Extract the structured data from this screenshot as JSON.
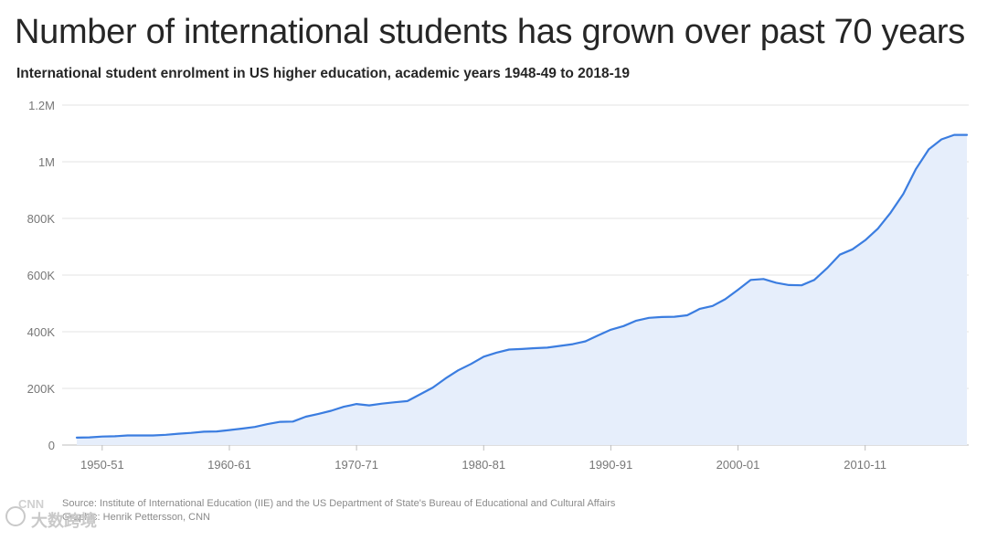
{
  "title": "Number of international students has grown over past 70 years",
  "subtitle": "International student enrolment in US higher education, academic years 1948-49 to 2018-19",
  "source": "Source: Institute of International Education (IIE) and the US Department of State's Bureau of Educational and Cultural Affairs",
  "graphic_credit": "Graphic: Henrik Pettersson, CNN",
  "watermark": {
    "cnn": "CNN",
    "text": "大数跨境"
  },
  "colors": {
    "line": "#3b7de0",
    "area": "#e6eefb",
    "grid": "#e3e3e3",
    "axis_text": "#777777"
  },
  "chart_data": {
    "type": "area",
    "title": "Number of international students has grown over past 70 years",
    "subtitle": "International student enrolment in US higher education, academic years 1948-49 to 2018-19",
    "xlabel": "",
    "ylabel": "",
    "ylim": [
      0,
      1200000
    ],
    "xlim": [
      1948,
      2018
    ],
    "grid": true,
    "yticks": [
      {
        "value": 0,
        "label": "0"
      },
      {
        "value": 200000,
        "label": "200K"
      },
      {
        "value": 400000,
        "label": "400K"
      },
      {
        "value": 600000,
        "label": "600K"
      },
      {
        "value": 800000,
        "label": "800K"
      },
      {
        "value": 1000000,
        "label": "1M"
      },
      {
        "value": 1200000,
        "label": "1.2M"
      }
    ],
    "xticks": [
      {
        "value": 1950,
        "label": "1950-51"
      },
      {
        "value": 1960,
        "label": "1960-61"
      },
      {
        "value": 1970,
        "label": "1970-71"
      },
      {
        "value": 1980,
        "label": "1980-81"
      },
      {
        "value": 1990,
        "label": "1990-91"
      },
      {
        "value": 2000,
        "label": "2000-01"
      },
      {
        "value": 2010,
        "label": "2010-11"
      }
    ],
    "series": [
      {
        "x": [
          1948,
          1949,
          1950,
          1951,
          1952,
          1953,
          1954,
          1955,
          1956,
          1957,
          1958,
          1959,
          1960,
          1961,
          1962,
          1963,
          1964,
          1965,
          1966,
          1967,
          1968,
          1969,
          1970,
          1971,
          1972,
          1973,
          1974,
          1975,
          1976,
          1977,
          1978,
          1979,
          1980,
          1981,
          1982,
          1983,
          1984,
          1985,
          1986,
          1987,
          1988,
          1989,
          1990,
          1991,
          1992,
          1993,
          1994,
          1995,
          1996,
          1997,
          1998,
          1999,
          2000,
          2001,
          2002,
          2003,
          2004,
          2005,
          2006,
          2007,
          2008,
          2009,
          2010,
          2011,
          2012,
          2013,
          2014,
          2015,
          2016,
          2017,
          2018
        ],
        "values": [
          26000,
          27000,
          30000,
          31000,
          34000,
          34000,
          34000,
          36000,
          40000,
          43000,
          47000,
          48000,
          53000,
          58000,
          64000,
          74000,
          82000,
          83000,
          100000,
          110000,
          121000,
          135000,
          145000,
          140000,
          146000,
          151000,
          155000,
          179000,
          203000,
          235000,
          264000,
          286000,
          312000,
          326000,
          337000,
          339000,
          342000,
          344000,
          350000,
          356000,
          366000,
          387000,
          407000,
          420000,
          439000,
          449000,
          452000,
          453000,
          458000,
          481000,
          491000,
          515000,
          548000,
          583000,
          586000,
          573000,
          565000,
          564000,
          583000,
          624000,
          672000,
          691000,
          723000,
          764000,
          820000,
          886000,
          975000,
          1044000,
          1079000,
          1095000,
          1095000
        ]
      }
    ]
  }
}
